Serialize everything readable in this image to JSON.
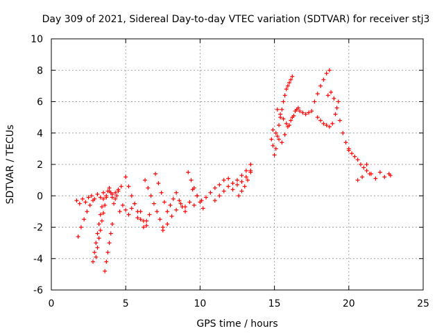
{
  "chart_data": {
    "type": "scatter",
    "title": "Day 309 of 2021, Sidereal Day-to-day VTEC variation (SDTVAR) for receiver stj3",
    "xlabel": "GPS time / hours",
    "ylabel": "SDTVAR / TECUs",
    "xlim": [
      0,
      25
    ],
    "ylim": [
      -6,
      10
    ],
    "xticks": [
      0,
      5,
      10,
      15,
      20,
      25
    ],
    "yticks": [
      -6,
      -4,
      -2,
      0,
      2,
      4,
      6,
      8,
      10
    ],
    "grid": true,
    "marker": "+",
    "color": "#ff0000",
    "series": [
      {
        "name": "SDTVAR",
        "x": [
          1.7,
          1.9,
          2.1,
          2.3,
          2.5,
          2.7,
          2.9,
          3.1,
          3.3,
          3.5,
          3.7,
          3.9,
          4.1,
          4.3,
          4.5,
          4.7,
          1.8,
          2.0,
          2.2,
          2.4,
          2.6,
          2.8,
          2.8,
          2.9,
          3.0,
          3.1,
          3.2,
          3.3,
          3.4,
          3.5,
          3.0,
          3.1,
          3.2,
          3.3,
          3.4,
          3.5,
          3.6,
          3.7,
          3.8,
          3.9,
          4.0,
          4.1,
          4.2,
          4.3,
          4.4,
          4.5,
          3.6,
          3.7,
          3.8,
          3.9,
          4.0,
          4.1,
          4.6,
          4.8,
          5.0,
          5.2,
          5.4,
          5.6,
          5.8,
          6.0,
          6.2,
          6.4,
          5.0,
          5.2,
          5.4,
          5.6,
          5.8,
          6.0,
          6.2,
          6.4,
          6.6,
          6.3,
          6.5,
          6.7,
          6.9,
          7.1,
          7.3,
          7.5,
          7.0,
          7.2,
          7.4,
          7.6,
          7.8,
          8.0,
          8.2,
          8.4,
          8.6,
          8.8,
          9.0,
          7.5,
          7.8,
          8.1,
          8.4,
          8.7,
          9.0,
          9.3,
          9.6,
          9.2,
          9.4,
          9.6,
          9.8,
          10.0,
          10.2,
          9.5,
          9.8,
          10.1,
          10.4,
          10.7,
          11.0,
          11.3,
          11.6,
          11.9,
          12.2,
          12.5,
          12.8,
          13.1,
          13.4,
          11.0,
          11.3,
          11.6,
          11.9,
          12.2,
          12.5,
          12.8,
          13.1,
          13.4,
          12.6,
          12.8,
          13.0,
          13.2,
          13.4,
          14.8,
          14.9,
          15.0,
          15.1,
          15.2,
          15.3,
          15.4,
          15.5,
          15.6,
          15.7,
          15.8,
          15.9,
          16.0,
          16.1,
          16.2,
          14.9,
          15.1,
          15.3,
          15.5,
          15.7,
          15.9,
          16.1,
          16.3,
          15.2,
          15.4,
          15.6,
          15.8,
          16.0,
          16.2,
          16.4,
          16.6,
          16.5,
          16.7,
          16.9,
          17.1,
          17.3,
          17.5,
          17.7,
          17.9,
          18.1,
          18.3,
          18.5,
          18.7,
          17.9,
          18.1,
          18.3,
          18.5,
          18.7,
          18.9,
          19.1,
          19.3,
          18.6,
          18.8,
          19.0,
          19.2,
          19.4,
          19.6,
          19.8,
          20.0,
          20.0,
          20.2,
          20.4,
          20.6,
          20.8,
          21.0,
          21.2,
          21.4,
          20.6,
          20.9,
          21.2,
          21.5,
          21.8,
          22.1,
          22.4,
          22.7,
          22.8
        ],
        "y": [
          -0.3,
          -0.5,
          -0.2,
          -0.4,
          -0.1,
          0.0,
          -0.2,
          0.1,
          -0.1,
          0.2,
          0.0,
          0.3,
          0.1,
          0.2,
          0.4,
          0.6,
          -2.6,
          -2.0,
          -1.5,
          -1.0,
          -0.6,
          -0.3,
          -4.2,
          -3.6,
          -3.0,
          -2.4,
          -1.8,
          -1.2,
          -0.7,
          -0.2,
          -3.9,
          -3.3,
          -2.7,
          -2.2,
          -1.6,
          -1.1,
          -0.6,
          -0.1,
          0.3,
          0.5,
          0.2,
          -0.1,
          -0.5,
          -0.2,
          0.0,
          0.3,
          -4.8,
          -4.2,
          -3.6,
          -3.0,
          -2.4,
          -1.8,
          -1.0,
          -0.6,
          -0.9,
          -1.2,
          -0.8,
          -0.5,
          -1.4,
          -1.0,
          -1.6,
          -1.9,
          1.2,
          0.6,
          0.0,
          -0.5,
          -1.0,
          -1.5,
          -2.0,
          -1.6,
          -1.2,
          1.0,
          0.5,
          0.0,
          -0.5,
          -1.0,
          -1.5,
          -2.0,
          1.4,
          0.8,
          0.2,
          -0.4,
          -1.0,
          -0.6,
          -0.2,
          0.2,
          -0.3,
          -0.7,
          -1.0,
          -2.2,
          -1.8,
          -1.3,
          -0.9,
          -0.5,
          -0.7,
          -0.4,
          -0.6,
          1.5,
          1.0,
          0.5,
          0.0,
          -0.4,
          -0.8,
          0.4,
          0.0,
          -0.3,
          -0.1,
          0.2,
          0.5,
          0.7,
          1.0,
          1.1,
          0.8,
          1.0,
          1.3,
          1.6,
          2.0,
          -0.3,
          0.0,
          0.3,
          0.6,
          0.4,
          0.7,
          0.9,
          1.2,
          1.6,
          0.0,
          0.3,
          0.6,
          1.0,
          1.5,
          3.6,
          3.2,
          2.6,
          3.0,
          3.8,
          4.5,
          5.0,
          5.5,
          6.0,
          6.4,
          6.8,
          7.0,
          7.2,
          7.4,
          7.6,
          4.2,
          4.0,
          3.6,
          3.4,
          3.9,
          4.4,
          4.8,
          5.1,
          5.5,
          5.2,
          4.9,
          4.6,
          4.5,
          5.0,
          5.4,
          5.6,
          5.5,
          5.4,
          5.3,
          5.2,
          5.3,
          5.4,
          6.0,
          6.5,
          7.0,
          7.4,
          7.8,
          8.0,
          5.0,
          4.8,
          4.6,
          4.5,
          4.4,
          4.6,
          5.2,
          6.0,
          6.4,
          6.6,
          6.2,
          5.6,
          4.8,
          4.0,
          3.4,
          3.0,
          2.9,
          2.7,
          2.5,
          2.3,
          2.0,
          1.8,
          1.6,
          1.4,
          1.0,
          1.2,
          2.0,
          1.4,
          1.1,
          1.5,
          1.2,
          1.4,
          1.3
        ]
      }
    ]
  }
}
